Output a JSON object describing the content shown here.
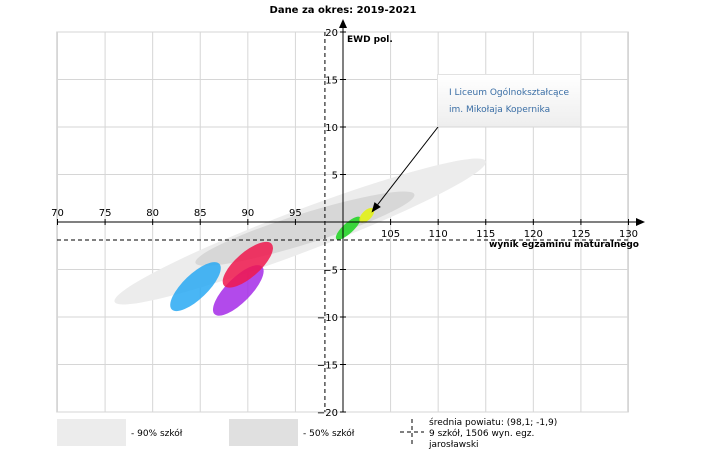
{
  "chart_data": {
    "type": "scatter",
    "title": "Dane za okres: 2019-2021",
    "xlabel": "wynik egzaminu maturalnego",
    "ylabel": "EWD pol.",
    "xlim": [
      70,
      130
    ],
    "ylim": [
      -20,
      20
    ],
    "x_ticks": [
      "70",
      "75",
      "80",
      "85",
      "90",
      "95",
      "105",
      "110",
      "115",
      "120",
      "125",
      "130"
    ],
    "y_ticks": [
      "20",
      "15",
      "10",
      "5",
      "−5",
      "−10",
      "−15",
      "−20"
    ],
    "grid": true,
    "reference_lines": {
      "x": 98.1,
      "y": -1.9
    },
    "bands": [
      {
        "label": "- 90% szkół",
        "color": "#ececec",
        "x": [
          76,
          115
        ],
        "y": [
          -8.4,
          6.4
        ],
        "width": 2.2
      },
      {
        "label": "- 50% szkół",
        "color": "#d7d7d7",
        "x": [
          84.5,
          107.5
        ],
        "y": [
          -4.3,
          2.9
        ],
        "width": 1.6
      }
    ],
    "ellipses": [
      {
        "color": "#29a9f3",
        "opacity": 0.85,
        "x": [
          82,
          87
        ],
        "y": [
          -9.2,
          -4.4
        ],
        "width": 1.3
      },
      {
        "color": "#a42ae8",
        "opacity": 0.85,
        "x": [
          86.5,
          91.5
        ],
        "y": [
          -9.7,
          -4.7
        ],
        "width": 1.3
      },
      {
        "color": "#f0174d",
        "opacity": 0.85,
        "x": [
          87.5,
          92.5
        ],
        "y": [
          -6.7,
          -2.3
        ],
        "width": 1.3
      },
      {
        "color": "#27d52a",
        "opacity": 0.9,
        "x": [
          99.3,
          101.8
        ],
        "y": [
          -1.8,
          0.5
        ],
        "width": 0.55
      },
      {
        "color": "#e3f218",
        "opacity": 0.9,
        "x": [
          101.8,
          103.2
        ],
        "y": [
          0.0,
          1.4
        ],
        "width": 0.5
      }
    ],
    "legend": [
      {
        "label": "- 90% szkół",
        "color": "#ececec"
      },
      {
        "label": "- 50% szkół",
        "color": "#e0e0e0"
      }
    ],
    "mean_legend": {
      "line1": "średnia powiatu: (98,1; -1,9)",
      "line2": "9 szkół, 1506 wyn. egz.",
      "line3": "jarosławski"
    },
    "annotation": {
      "line1": "I Liceum Ogólnokształcące",
      "line2": "im. Mikołaja Kopernika",
      "target": {
        "x": 103,
        "y": 1
      }
    }
  }
}
